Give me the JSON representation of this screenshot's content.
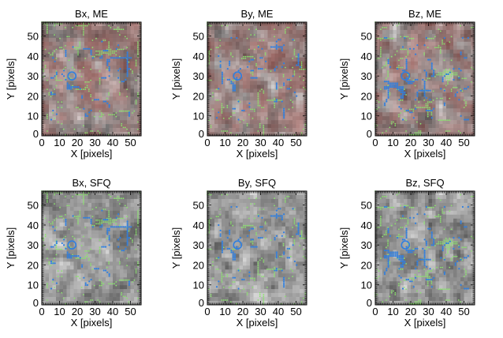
{
  "chart_data": [
    {
      "type": "heatmap",
      "title": "Bx, ME",
      "xlabel": "X [pixels]",
      "ylabel": "Y [pixels]",
      "xlim": [
        0,
        56
      ],
      "ylim": [
        0,
        57
      ],
      "xticks": [
        "0",
        "10",
        "20",
        "30",
        "40",
        "50"
      ],
      "yticks": [
        "0",
        "10",
        "20",
        "30",
        "40",
        "50"
      ],
      "colormap": "reddish-gray",
      "grid": false
    },
    {
      "type": "heatmap",
      "title": "By, ME",
      "xlabel": "X [pixels]",
      "ylabel": "Y [pixels]",
      "xlim": [
        0,
        56
      ],
      "ylim": [
        0,
        57
      ],
      "xticks": [
        "0",
        "10",
        "20",
        "30",
        "40",
        "50"
      ],
      "yticks": [
        "0",
        "10",
        "20",
        "30",
        "40",
        "50"
      ],
      "colormap": "reddish-gray",
      "grid": false
    },
    {
      "type": "heatmap",
      "title": "Bz, ME",
      "xlabel": "X [pixels]",
      "ylabel": "Y [pixels]",
      "xlim": [
        0,
        56
      ],
      "ylim": [
        0,
        57
      ],
      "xticks": [
        "0",
        "10",
        "20",
        "30",
        "40",
        "50"
      ],
      "yticks": [
        "0",
        "10",
        "20",
        "30",
        "40",
        "50"
      ],
      "colormap": "reddish-gray",
      "grid": false
    },
    {
      "type": "heatmap",
      "title": "Bx, SFQ",
      "xlabel": "X [pixels]",
      "ylabel": "Y [pixels]",
      "xlim": [
        0,
        56
      ],
      "ylim": [
        0,
        57
      ],
      "xticks": [
        "0",
        "10",
        "20",
        "30",
        "40",
        "50"
      ],
      "yticks": [
        "0",
        "10",
        "20",
        "30",
        "40",
        "50"
      ],
      "colormap": "gray",
      "grid": false
    },
    {
      "type": "heatmap",
      "title": "By, SFQ",
      "xlabel": "X [pixels]",
      "ylabel": "Y [pixels]",
      "xlim": [
        0,
        56
      ],
      "ylim": [
        0,
        57
      ],
      "xticks": [
        "0",
        "10",
        "20",
        "30",
        "40",
        "50"
      ],
      "yticks": [
        "0",
        "10",
        "20",
        "30",
        "40",
        "50"
      ],
      "colormap": "gray",
      "grid": false
    },
    {
      "type": "heatmap",
      "title": "Bz, SFQ",
      "xlabel": "X [pixels]",
      "ylabel": "Y [pixels]",
      "xlim": [
        0,
        56
      ],
      "ylim": [
        0,
        57
      ],
      "xticks": [
        "0",
        "10",
        "20",
        "30",
        "40",
        "50"
      ],
      "yticks": [
        "0",
        "10",
        "20",
        "30",
        "40",
        "50"
      ],
      "colormap": "gray",
      "grid": false
    }
  ],
  "colors": {
    "contour_green": "#8be36e",
    "contour_blue": "#2f7fe0",
    "tint_red": "#a0453f",
    "frame": "#000000"
  }
}
